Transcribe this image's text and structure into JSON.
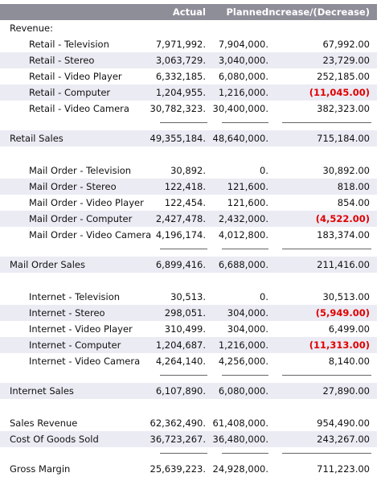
{
  "headers": {
    "actual": "Actual",
    "planned": "Planned",
    "increase": "Increase/(Decrease)"
  },
  "rows": [
    {
      "label": "Revenue:",
      "actual": "",
      "planned": "",
      "diff": ""
    },
    {
      "label": "Retail - Television",
      "actual": "7,971,992.",
      "planned": "7,904,000.",
      "diff": "67,992.00"
    },
    {
      "label": "Retail - Stereo",
      "actual": "3,063,729.",
      "planned": "3,040,000.",
      "diff": "23,729.00"
    },
    {
      "label": "Retail - Video Player",
      "actual": "6,332,185.",
      "planned": "6,080,000.",
      "diff": "252,185.00"
    },
    {
      "label": "Retail - Computer",
      "actual": "1,204,955.",
      "planned": "1,216,000.",
      "diff": "(11,045.00)"
    },
    {
      "label": "Retail - Video Camera",
      "actual": "30,782,323.",
      "planned": "30,400,000.",
      "diff": "382,323.00"
    },
    {
      "label": "Retail Sales",
      "actual": "49,355,184.",
      "planned": "48,640,000.",
      "diff": "715,184.00"
    },
    {
      "label": "Mail Order - Television",
      "actual": "30,892.",
      "planned": "0.",
      "diff": "30,892.00"
    },
    {
      "label": "Mail Order - Stereo",
      "actual": "122,418.",
      "planned": "121,600.",
      "diff": "818.00"
    },
    {
      "label": "Mail Order - Video Player",
      "actual": "122,454.",
      "planned": "121,600.",
      "diff": "854.00"
    },
    {
      "label": "Mail Order - Computer",
      "actual": "2,427,478.",
      "planned": "2,432,000.",
      "diff": "(4,522.00)"
    },
    {
      "label": "Mail Order - Video Camera",
      "actual": "4,196,174.",
      "planned": "4,012,800.",
      "diff": "183,374.00"
    },
    {
      "label": "Mail Order Sales",
      "actual": "6,899,416.",
      "planned": "6,688,000.",
      "diff": "211,416.00"
    },
    {
      "label": "Internet - Television",
      "actual": "30,513.",
      "planned": "0.",
      "diff": "30,513.00"
    },
    {
      "label": "Internet - Stereo",
      "actual": "298,051.",
      "planned": "304,000.",
      "diff": "(5,949.00)"
    },
    {
      "label": "Internet - Video Player",
      "actual": "310,499.",
      "planned": "304,000.",
      "diff": "6,499.00"
    },
    {
      "label": "Internet - Computer",
      "actual": "1,204,687.",
      "planned": "1,216,000.",
      "diff": "(11,313.00)"
    },
    {
      "label": "Internet - Video Camera",
      "actual": "4,264,140.",
      "planned": "4,256,000.",
      "diff": "8,140.00"
    },
    {
      "label": "Internet Sales",
      "actual": "6,107,890.",
      "planned": "6,080,000.",
      "diff": "27,890.00"
    },
    {
      "label": "Sales Revenue",
      "actual": "62,362,490.",
      "planned": "61,408,000.",
      "diff": "954,490.00"
    },
    {
      "label": "Cost Of Goods Sold",
      "actual": "36,723,267.",
      "planned": "36,480,000.",
      "diff": "243,267.00"
    },
    {
      "label": "Gross Margin",
      "actual": "25,639,223.",
      "planned": "24,928,000.",
      "diff": "711,223.00"
    }
  ]
}
